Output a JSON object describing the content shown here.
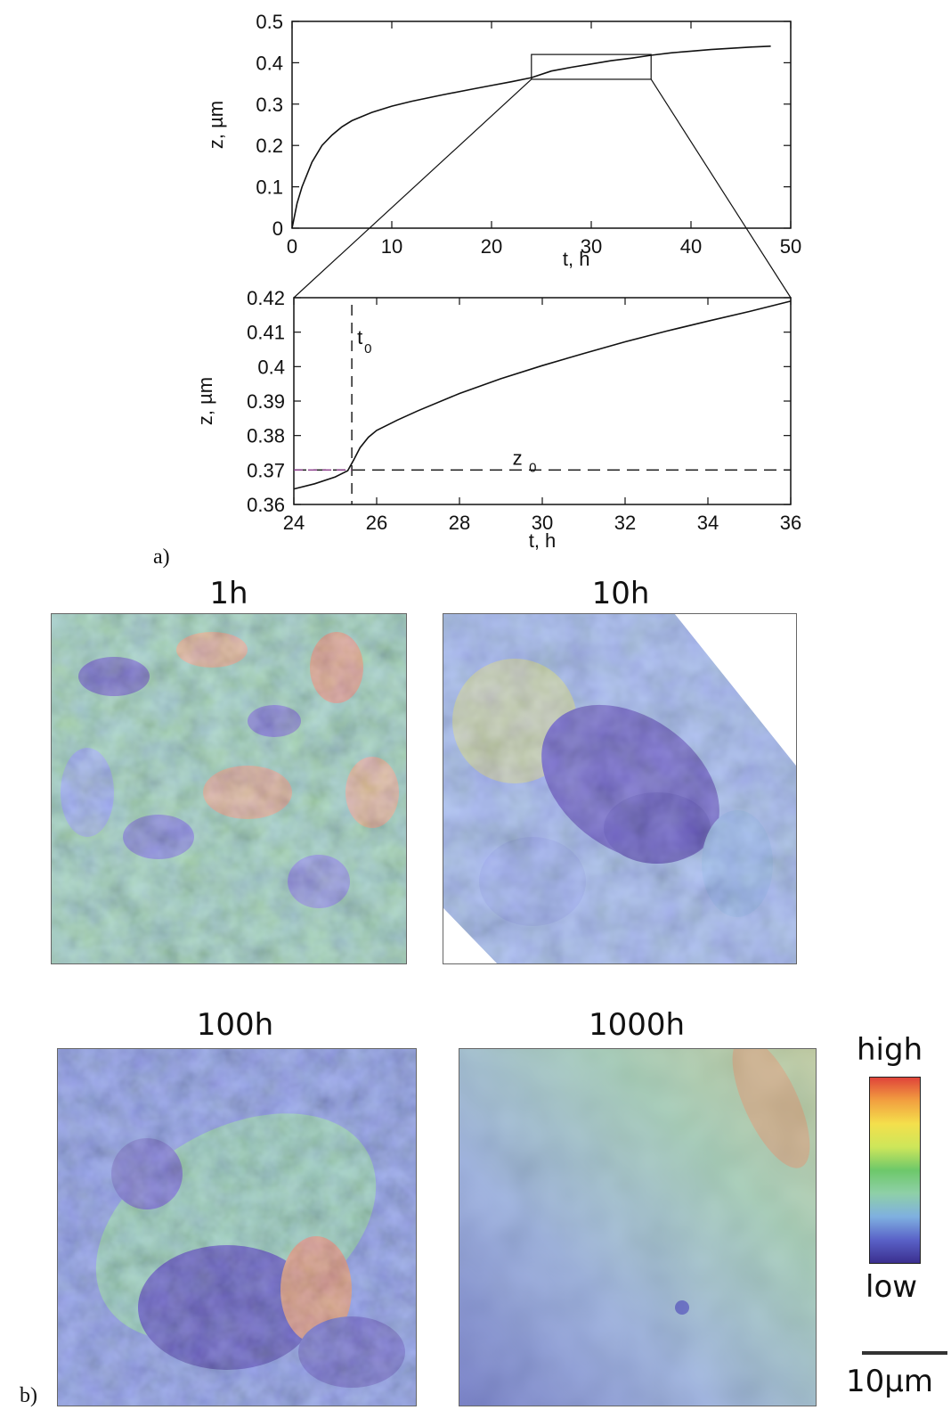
{
  "panel_a_label": "a)",
  "panel_b_label": "b)",
  "chart_data": [
    {
      "type": "line",
      "xlabel": "t, h",
      "ylabel": "z, µm",
      "xlim": [
        0,
        50
      ],
      "ylim": [
        0,
        0.5
      ],
      "xticks": [
        "0",
        "10",
        "20",
        "30",
        "40",
        "50"
      ],
      "yticks": [
        "0",
        "0.1",
        "0.2",
        "0.3",
        "0.4",
        "0.5"
      ],
      "series": [
        {
          "x": [
            0,
            0.5,
            1,
            2,
            3,
            4,
            5,
            6,
            8,
            10,
            12,
            15,
            18,
            20,
            22,
            24,
            26,
            28,
            30,
            32,
            34,
            36,
            38,
            40,
            42,
            44,
            46,
            48
          ],
          "y": [
            0,
            0.06,
            0.1,
            0.16,
            0.2,
            0.225,
            0.245,
            0.26,
            0.28,
            0.295,
            0.307,
            0.322,
            0.336,
            0.345,
            0.354,
            0.364,
            0.38,
            0.389,
            0.397,
            0.405,
            0.411,
            0.418,
            0.424,
            0.428,
            0.432,
            0.435,
            0.438,
            0.44
          ]
        }
      ],
      "inset_box": {
        "x": [
          24,
          36
        ],
        "y": [
          0.36,
          0.42
        ]
      }
    },
    {
      "type": "line",
      "xlabel": "t, h",
      "ylabel": "z, µm",
      "xlim": [
        24,
        36
      ],
      "ylim": [
        0.36,
        0.42
      ],
      "xticks": [
        "24",
        "26",
        "28",
        "30",
        "32",
        "34",
        "36"
      ],
      "yticks": [
        "0.36",
        "0.37",
        "0.38",
        "0.39",
        "0.4",
        "0.41",
        "0.42"
      ],
      "series": [
        {
          "x": [
            24,
            24.5,
            25,
            25.3,
            25.45,
            25.6,
            25.8,
            26,
            26.5,
            27,
            28,
            29,
            30,
            31,
            32,
            33,
            34,
            35,
            36
          ],
          "y": [
            0.3645,
            0.366,
            0.368,
            0.3698,
            0.373,
            0.3765,
            0.3795,
            0.3815,
            0.3845,
            0.3872,
            0.3922,
            0.3965,
            0.4003,
            0.4038,
            0.4072,
            0.4103,
            0.4132,
            0.416,
            0.419
          ]
        }
      ],
      "t0_value": 25.4,
      "t0_label": "t",
      "t0_sub": "0",
      "z0_value": 0.37,
      "z0_label": "z",
      "z0_sub": "0"
    }
  ],
  "maps": [
    {
      "title": "1h"
    },
    {
      "title": "10h"
    },
    {
      "title": "100h"
    },
    {
      "title": "1000h"
    }
  ],
  "colorbar": {
    "high_label": "high",
    "low_label": "low",
    "colors": [
      "#3b2f8f",
      "#5a62c8",
      "#7fb0e0",
      "#8fd0a8",
      "#6dc86a",
      "#cde65a",
      "#f4e04c",
      "#f2a040",
      "#e0443a"
    ]
  },
  "scale_bar_label": "10µm"
}
